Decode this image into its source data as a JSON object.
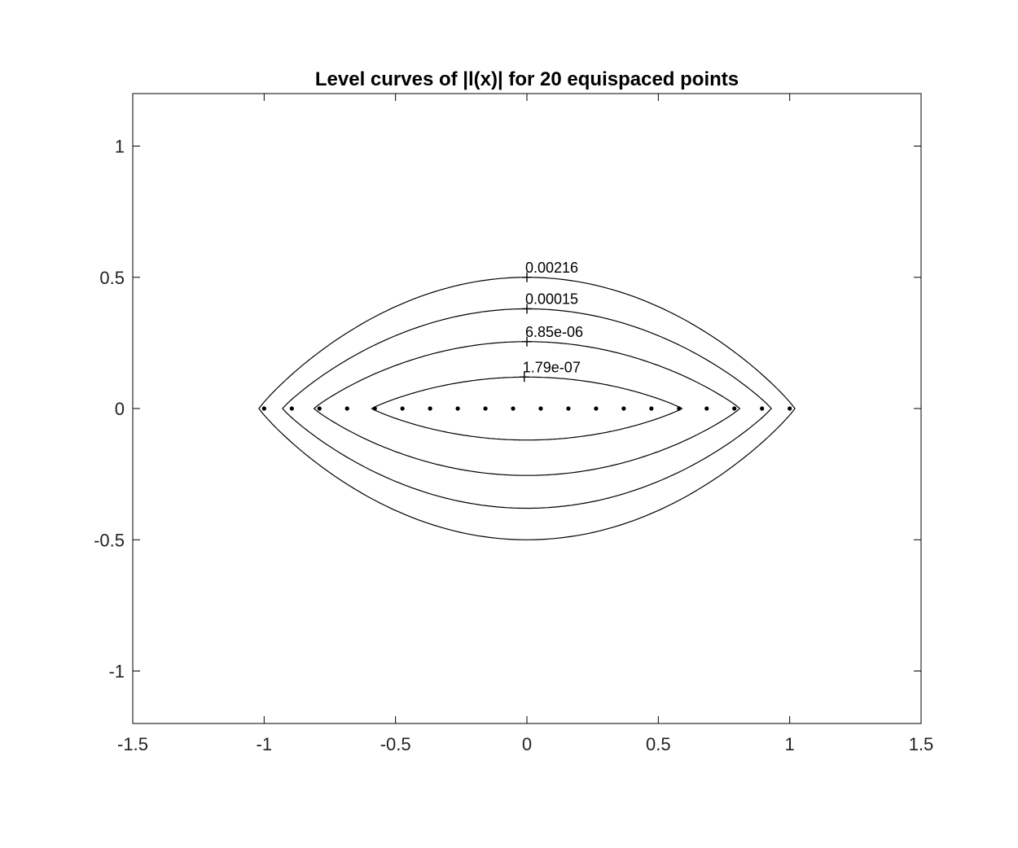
{
  "chart_data": {
    "type": "contour",
    "title": "Level curves of |l(x)| for 20 equispaced points",
    "xlabel": "",
    "ylabel": "",
    "xlim": [
      -1.5,
      1.5
    ],
    "ylim": [
      -1.2,
      1.2
    ],
    "xticks": [
      -1.5,
      -1,
      -0.5,
      0,
      0.5,
      1,
      1.5
    ],
    "xtick_labels": [
      "-1.5",
      "-1",
      "-0.5",
      "0",
      "0.5",
      "1",
      "1.5"
    ],
    "yticks": [
      -1,
      -0.5,
      0,
      0.5,
      1
    ],
    "ytick_labels": [
      "-1",
      "-0.5",
      "0",
      "0.5",
      "1"
    ],
    "grid": false,
    "points": {
      "count": 20,
      "x": [
        -1,
        -0.8947,
        -0.7895,
        -0.6842,
        -0.5789,
        -0.4737,
        -0.3684,
        -0.2632,
        -0.1579,
        -0.0526,
        0.0526,
        0.1579,
        0.2632,
        0.3684,
        0.4737,
        0.5789,
        0.6842,
        0.7895,
        0.8947,
        1
      ],
      "y": 0,
      "marker": "dot",
      "color": "#000000"
    },
    "level_curves": [
      {
        "level": "0.00216",
        "x_extent": [
          -1.02,
          1.02
        ],
        "y_top": 0.5,
        "y_bottom": -0.5,
        "label_at": [
          0.0,
          0.5
        ]
      },
      {
        "level": "0.00015",
        "x_extent": [
          -0.93,
          0.93
        ],
        "y_top": 0.38,
        "y_bottom": -0.38,
        "label_at": [
          0.0,
          0.38
        ]
      },
      {
        "level": "6.85e-06",
        "x_extent": [
          -0.81,
          0.81
        ],
        "y_top": 0.255,
        "y_bottom": -0.255,
        "label_at": [
          0.0,
          0.255
        ]
      },
      {
        "level": "1.79e-07",
        "x_extent": [
          -0.59,
          0.59
        ],
        "y_top": 0.12,
        "y_bottom": -0.12,
        "label_at": [
          -0.01,
          0.12
        ]
      }
    ],
    "line_color": "#000000"
  }
}
